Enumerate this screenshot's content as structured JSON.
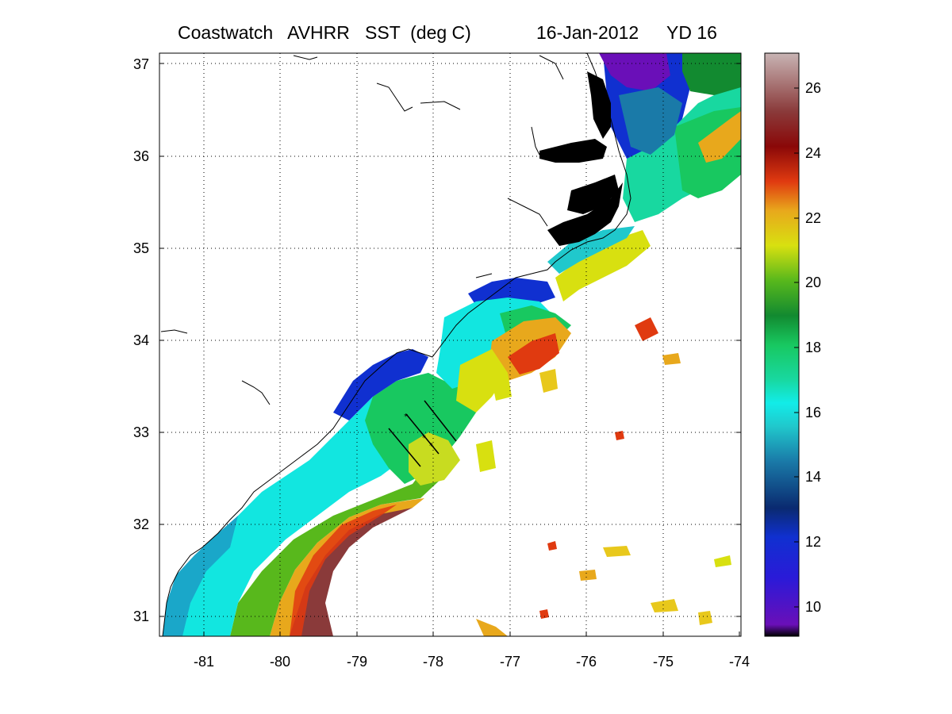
{
  "title": {
    "main": "Coastwatch   AVHRR   SST  (deg C)",
    "date": "16-Jan-2012",
    "yd": "YD 16"
  },
  "map": {
    "lon_ticks": [
      "-81",
      "-80",
      "-79",
      "-78",
      "-77",
      "-76",
      "-75",
      "-74"
    ],
    "lat_ticks": [
      "37",
      "36",
      "35",
      "34",
      "33",
      "32",
      "31"
    ],
    "lon_range": [
      -81.6,
      -74
    ],
    "lat_range": [
      30.8,
      37.15
    ],
    "grid": "dotted",
    "land_color": "#ffffff",
    "coast_color": "#000000",
    "sounds_color": "#000000"
  },
  "colorbar": {
    "ticks": [
      "26",
      "24",
      "22",
      "20",
      "18",
      "16",
      "14",
      "12",
      "10"
    ],
    "range": [
      9,
      27
    ],
    "colormap": [
      "#6a0fb8",
      "#2222e0",
      "#0b3fa0",
      "#1aa7c9",
      "#12e6e0",
      "#18d67a",
      "#1a9a3a",
      "#8acb1e",
      "#e6e012",
      "#f0a020",
      "#e02a10",
      "#7a0808",
      "#9a4a40",
      "#c8b0b0"
    ]
  }
}
